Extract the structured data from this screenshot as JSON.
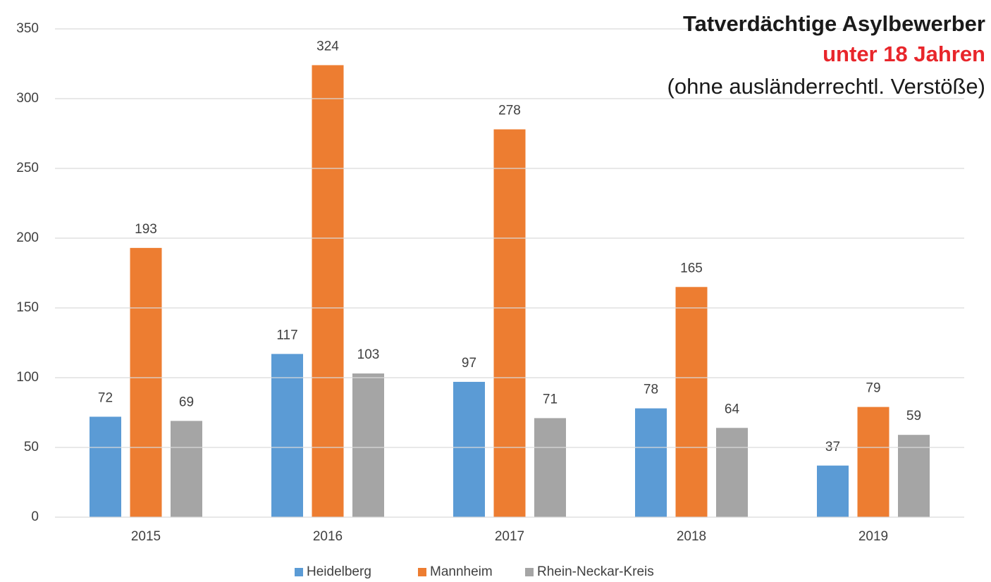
{
  "chart_data": {
    "type": "bar",
    "title": "Tatverdächtige Asylbewerber",
    "subtitle": "unter 18 Jahren",
    "annotation": "(ohne ausländerrechtl. Verstöße)",
    "categories": [
      "2015",
      "2016",
      "2017",
      "2018",
      "2019"
    ],
    "series": [
      {
        "name": "Heidelberg",
        "color": "#5b9bd5",
        "values": [
          72,
          117,
          97,
          78,
          37
        ]
      },
      {
        "name": "Mannheim",
        "color": "#ed7d31",
        "values": [
          193,
          324,
          278,
          165,
          79
        ]
      },
      {
        "name": "Rhein-Neckar-Kreis",
        "color": "#a5a5a5",
        "values": [
          69,
          103,
          71,
          64,
          59
        ]
      }
    ],
    "ylim": [
      0,
      350
    ],
    "yticks": [
      0,
      50,
      100,
      150,
      200,
      250,
      300,
      350
    ],
    "grid": true,
    "legend": "bottom",
    "subtitle_color": "#e8262b"
  }
}
